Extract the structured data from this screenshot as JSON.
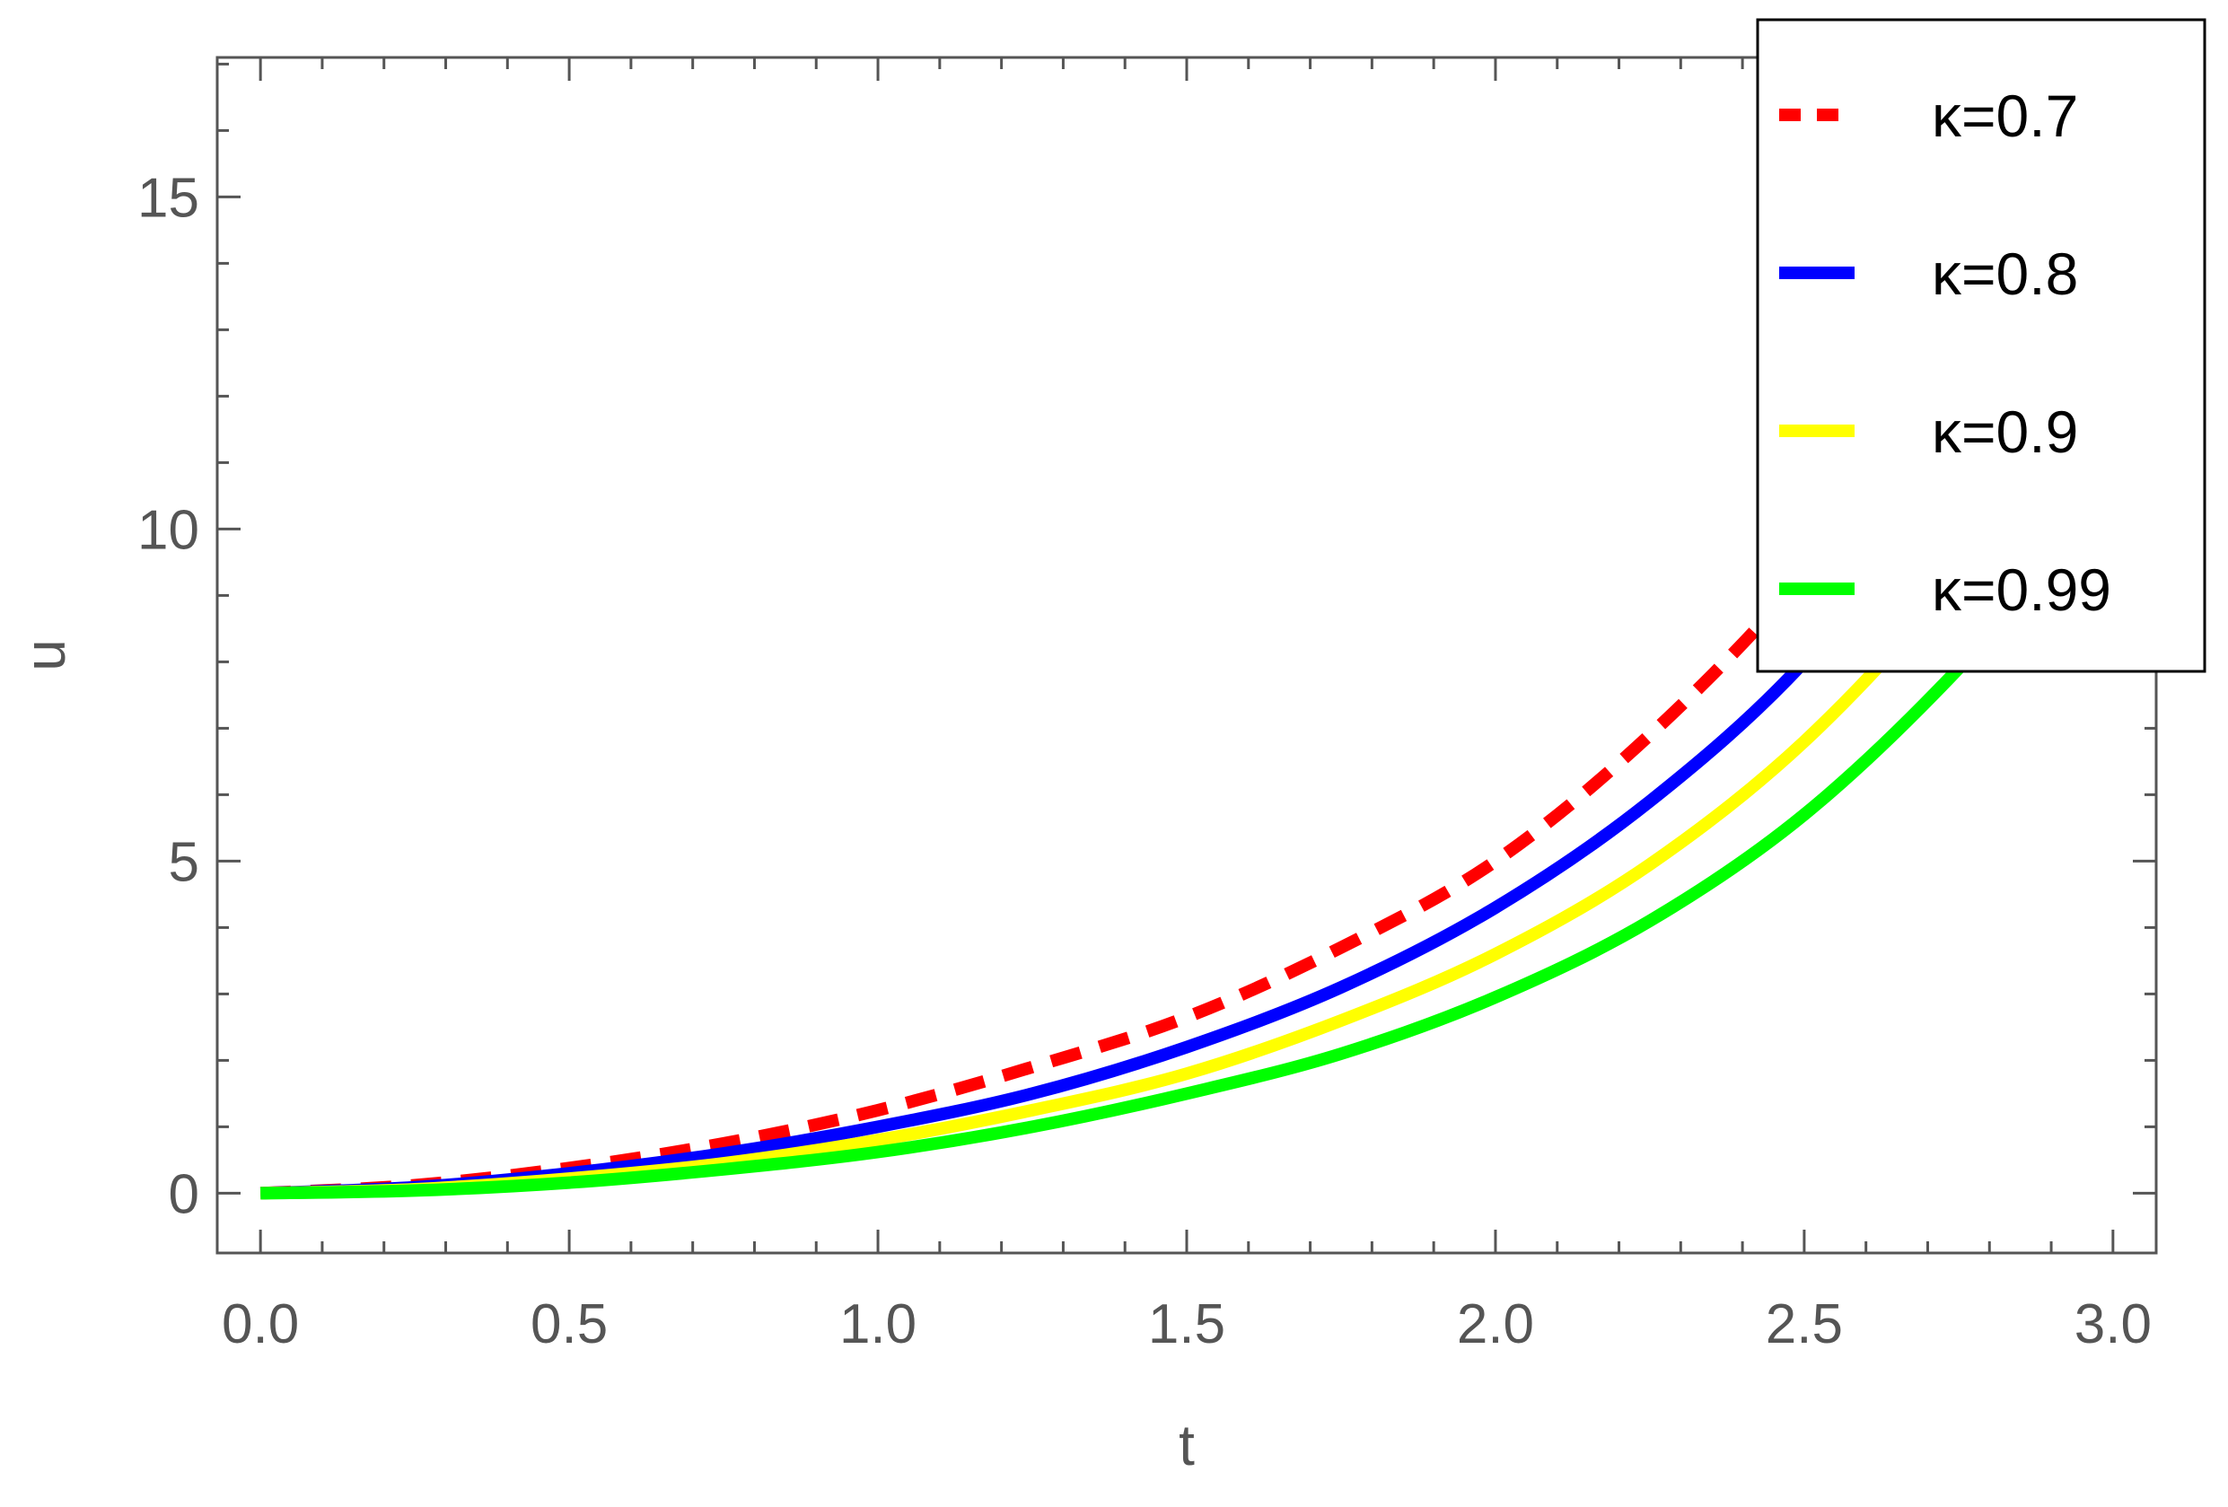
{
  "chart_data": {
    "type": "line",
    "title": "",
    "xlabel": "t",
    "ylabel": "u",
    "xlim": [
      -0.07,
      3.07
    ],
    "ylim": [
      -0.9,
      17.1
    ],
    "x_ticks": [
      0.0,
      0.5,
      1.0,
      1.5,
      2.0,
      2.5,
      3.0
    ],
    "x_tick_labels": [
      "0.0",
      "0.5",
      "1.0",
      "1.5",
      "2.0",
      "2.5",
      "3.0"
    ],
    "y_ticks": [
      0,
      5,
      10,
      15
    ],
    "y_tick_labels": [
      "0",
      "5",
      "10",
      "15"
    ],
    "grid": false,
    "legend_position": "top-right",
    "x": [
      0.0,
      0.25,
      0.5,
      0.75,
      1.0,
      1.25,
      1.5,
      1.75,
      2.0,
      2.25,
      2.5,
      2.75,
      3.0
    ],
    "series": [
      {
        "name": "κ=0.7",
        "color": "#ff0000",
        "dash": "dashed",
        "values": [
          0.0,
          0.12,
          0.38,
          0.75,
          1.25,
          1.9,
          2.65,
          3.7,
          5.0,
          6.9,
          9.3,
          12.3,
          16.0
        ]
      },
      {
        "name": "κ=0.8",
        "color": "#0000ff",
        "dash": "solid",
        "values": [
          0.0,
          0.09,
          0.3,
          0.6,
          1.0,
          1.5,
          2.2,
          3.1,
          4.3,
          5.9,
          8.0,
          10.9,
          14.3
        ]
      },
      {
        "name": "κ=0.9",
        "color": "#ffff00",
        "dash": "solid",
        "values": [
          0.0,
          0.06,
          0.22,
          0.45,
          0.8,
          1.25,
          1.8,
          2.6,
          3.6,
          4.95,
          6.8,
          9.3,
          12.4
        ]
      },
      {
        "name": "κ=0.99",
        "color": "#00ff00",
        "dash": "solid",
        "values": [
          0.0,
          0.04,
          0.16,
          0.36,
          0.62,
          1.0,
          1.5,
          2.1,
          2.95,
          4.1,
          5.7,
          7.9,
          10.6
        ]
      }
    ]
  }
}
